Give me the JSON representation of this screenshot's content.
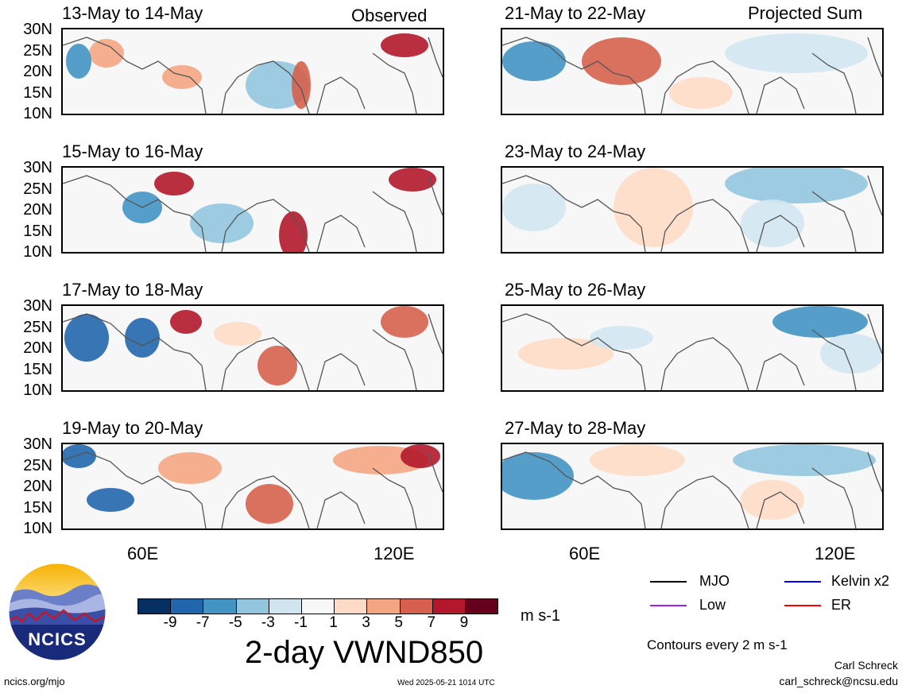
{
  "columns": {
    "left_title": "Observed",
    "right_title": "Projected Sum"
  },
  "panels": {
    "left": [
      "13-May to 14-May",
      "15-May to 16-May",
      "17-May to 18-May",
      "19-May to 20-May"
    ],
    "right": [
      "21-May to 22-May",
      "23-May to 24-May",
      "25-May to 26-May",
      "27-May to 28-May"
    ]
  },
  "lat_labels": [
    "30N",
    "25N",
    "20N",
    "15N",
    "10N"
  ],
  "lon_labels": [
    "60E",
    "120E"
  ],
  "colorbar": {
    "labels": [
      "-9",
      "-7",
      "-5",
      "-3",
      "-1",
      "1",
      "3",
      "5",
      "7",
      "9"
    ],
    "colors": [
      "#053061",
      "#2166ac",
      "#4393c3",
      "#92c5de",
      "#d1e5f0",
      "#f7f7f7",
      "#fddbc7",
      "#f4a582",
      "#d6604d",
      "#b2182b",
      "#67001f"
    ],
    "units": "m s-1"
  },
  "legend": {
    "mjo": "MJO",
    "kelvin": "Kelvin x2",
    "low": "Low",
    "er": "ER",
    "mjo_color": "#000000",
    "kelvin_color": "#0000ff",
    "low_color": "#a020f0",
    "er_color": "#ff0000"
  },
  "title": "2-day VWND850",
  "contours_note": "Contours every 2 m s-1",
  "author": "Carl Schreck",
  "email": "carl_schreck@ncsu.edu",
  "site": "ncics.org/mjo",
  "timestamp": "Wed 2025-05-21 1014 UTC",
  "logo_text": "NCICS"
}
